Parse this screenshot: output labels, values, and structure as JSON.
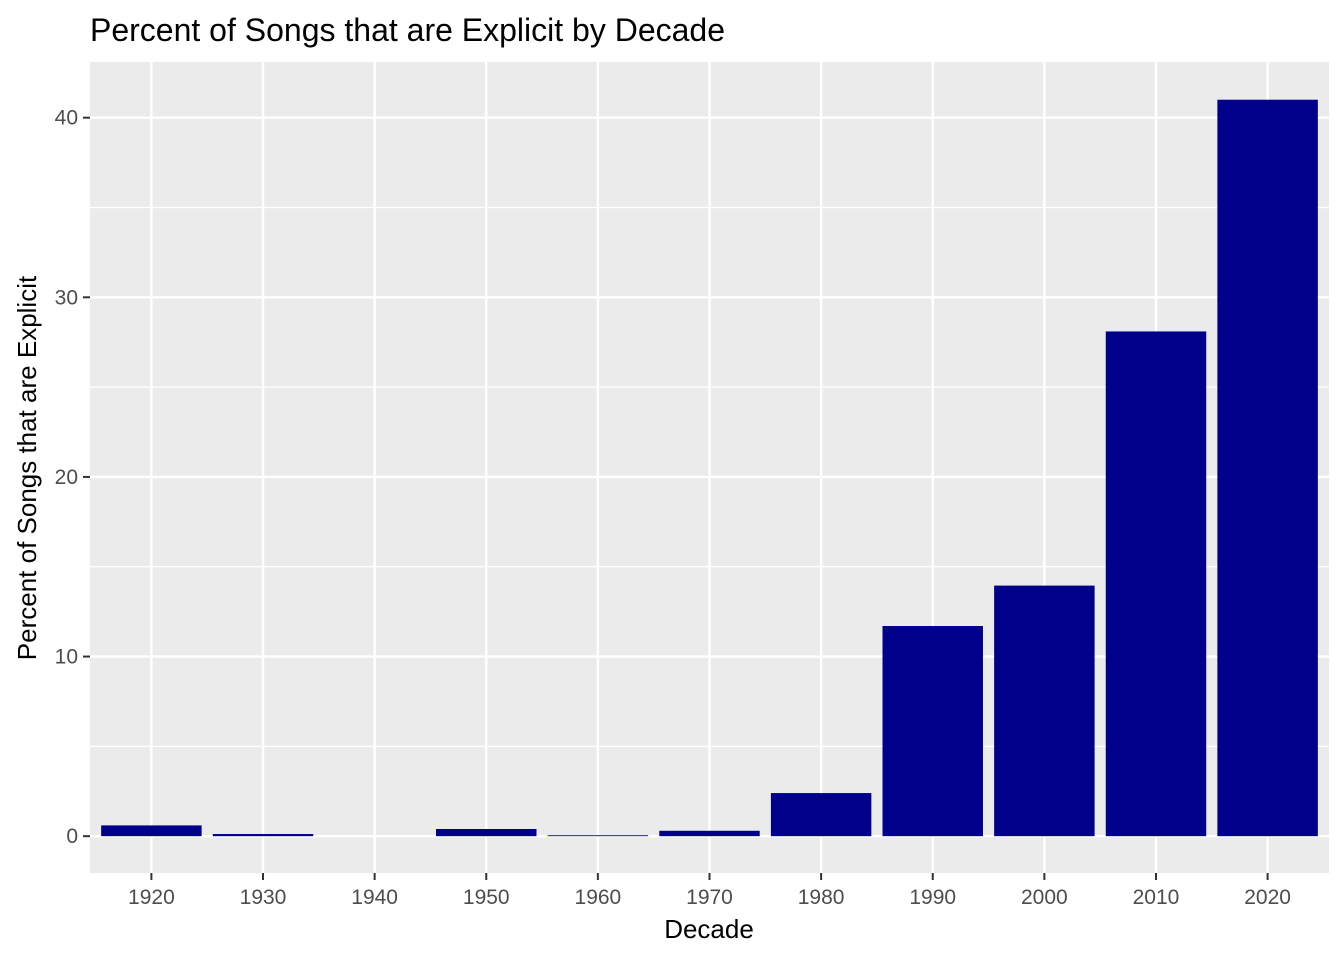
{
  "chart_data": {
    "type": "bar",
    "title": "Percent of Songs that are Explicit by Decade",
    "xlabel": "Decade",
    "ylabel": "Percent of Songs that are Explicit",
    "categories": [
      "1920",
      "1930",
      "1940",
      "1950",
      "1960",
      "1970",
      "1980",
      "1990",
      "2000",
      "2010",
      "2020"
    ],
    "values": [
      0.6,
      0.12,
      0.0,
      0.4,
      0.05,
      0.3,
      2.4,
      11.7,
      13.95,
      28.1,
      41.0
    ],
    "y_ticks": [
      0,
      10,
      20,
      30,
      40
    ],
    "ylim": [
      -2.05,
      43.1
    ],
    "grid": true,
    "colors": {
      "bar": "#00008B",
      "panel": "#EBEBEB",
      "grid": "#FFFFFF",
      "tick_text": "#4D4D4D",
      "tick_mark": "#333333"
    }
  }
}
